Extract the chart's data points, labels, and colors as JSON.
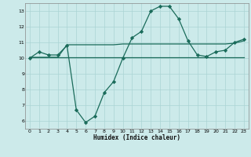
{
  "line1_x": [
    0,
    1,
    2,
    3,
    4,
    5,
    6,
    7,
    8,
    9,
    10,
    11,
    12,
    13,
    14,
    15,
    16,
    17,
    18,
    19,
    20,
    21,
    22,
    23
  ],
  "line1_y": [
    10.0,
    10.4,
    10.2,
    10.2,
    10.8,
    6.7,
    5.9,
    6.3,
    7.8,
    8.5,
    10.0,
    11.3,
    11.7,
    13.0,
    13.3,
    13.3,
    12.5,
    11.1,
    10.2,
    10.1,
    10.4,
    10.5,
    11.0,
    11.2
  ],
  "line2_x": [
    0,
    1,
    2,
    3,
    4,
    5,
    6,
    7,
    8,
    9,
    10,
    11,
    12,
    13,
    14,
    15,
    16,
    17,
    18,
    19,
    20,
    21,
    22,
    23
  ],
  "line2_y": [
    10.05,
    10.05,
    10.05,
    10.05,
    10.05,
    10.05,
    10.05,
    10.05,
    10.05,
    10.05,
    10.05,
    10.05,
    10.05,
    10.05,
    10.05,
    10.05,
    10.05,
    10.05,
    10.05,
    10.05,
    10.05,
    10.05,
    10.05,
    10.05
  ],
  "line3_x": [
    0,
    1,
    2,
    3,
    4,
    5,
    6,
    7,
    8,
    9,
    10,
    11,
    12,
    13,
    14,
    15,
    16,
    17,
    18,
    19,
    20,
    21,
    22,
    23
  ],
  "line3_y": [
    10.05,
    10.05,
    10.05,
    10.05,
    10.85,
    10.85,
    10.85,
    10.85,
    10.85,
    10.85,
    10.9,
    10.9,
    10.9,
    10.9,
    10.9,
    10.9,
    10.9,
    10.9,
    10.9,
    10.9,
    10.9,
    10.9,
    10.95,
    11.1
  ],
  "line_color": "#1a6b5a",
  "bg_color": "#cceaea",
  "grid_color": "#aad4d4",
  "xlabel": "Humidex (Indice chaleur)",
  "xlim": [
    -0.5,
    23.5
  ],
  "ylim": [
    5.5,
    13.5
  ],
  "yticks": [
    6,
    7,
    8,
    9,
    10,
    11,
    12,
    13
  ],
  "xticks": [
    0,
    1,
    2,
    3,
    4,
    5,
    6,
    7,
    8,
    9,
    10,
    11,
    12,
    13,
    14,
    15,
    16,
    17,
    18,
    19,
    20,
    21,
    22,
    23
  ],
  "marker": "D",
  "markersize": 2.2,
  "linewidth": 0.9
}
